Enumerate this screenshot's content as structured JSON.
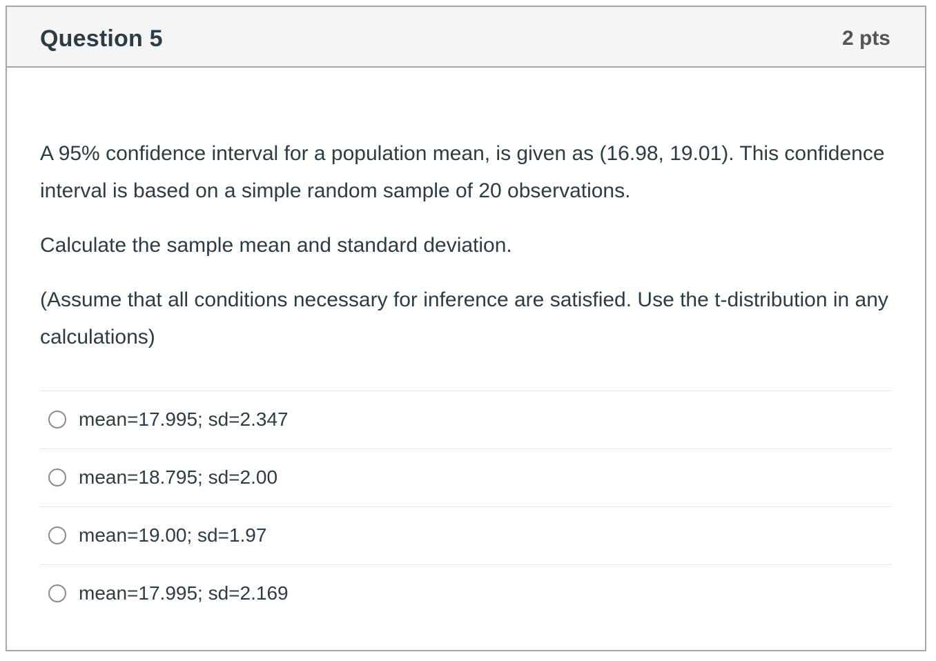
{
  "header": {
    "title": "Question 5",
    "points": "2 pts"
  },
  "question": {
    "paragraphs": [
      "A 95% confidence interval for a population mean, is given as (16.98, 19.01). This confidence interval is based on a simple random sample of 20 observations.",
      "Calculate the sample mean and standard deviation.",
      "(Assume that all conditions necessary for inference are satisfied. Use the t-distribution in any calculations)"
    ]
  },
  "answers": {
    "options": [
      {
        "label": "mean=17.995; sd=2.347",
        "selected": false
      },
      {
        "label": "mean=18.795; sd=2.00",
        "selected": false
      },
      {
        "label": "mean=19.00; sd=1.97",
        "selected": false
      },
      {
        "label": "mean=17.995; sd=2.169",
        "selected": false
      }
    ]
  },
  "colors": {
    "header_bg": "#f5f5f5",
    "card_border": "#a6a6a6",
    "text": "#2d3b45",
    "points_text": "#555555",
    "divider": "#e3e3e3",
    "radio_border": "#8a8a8a"
  }
}
